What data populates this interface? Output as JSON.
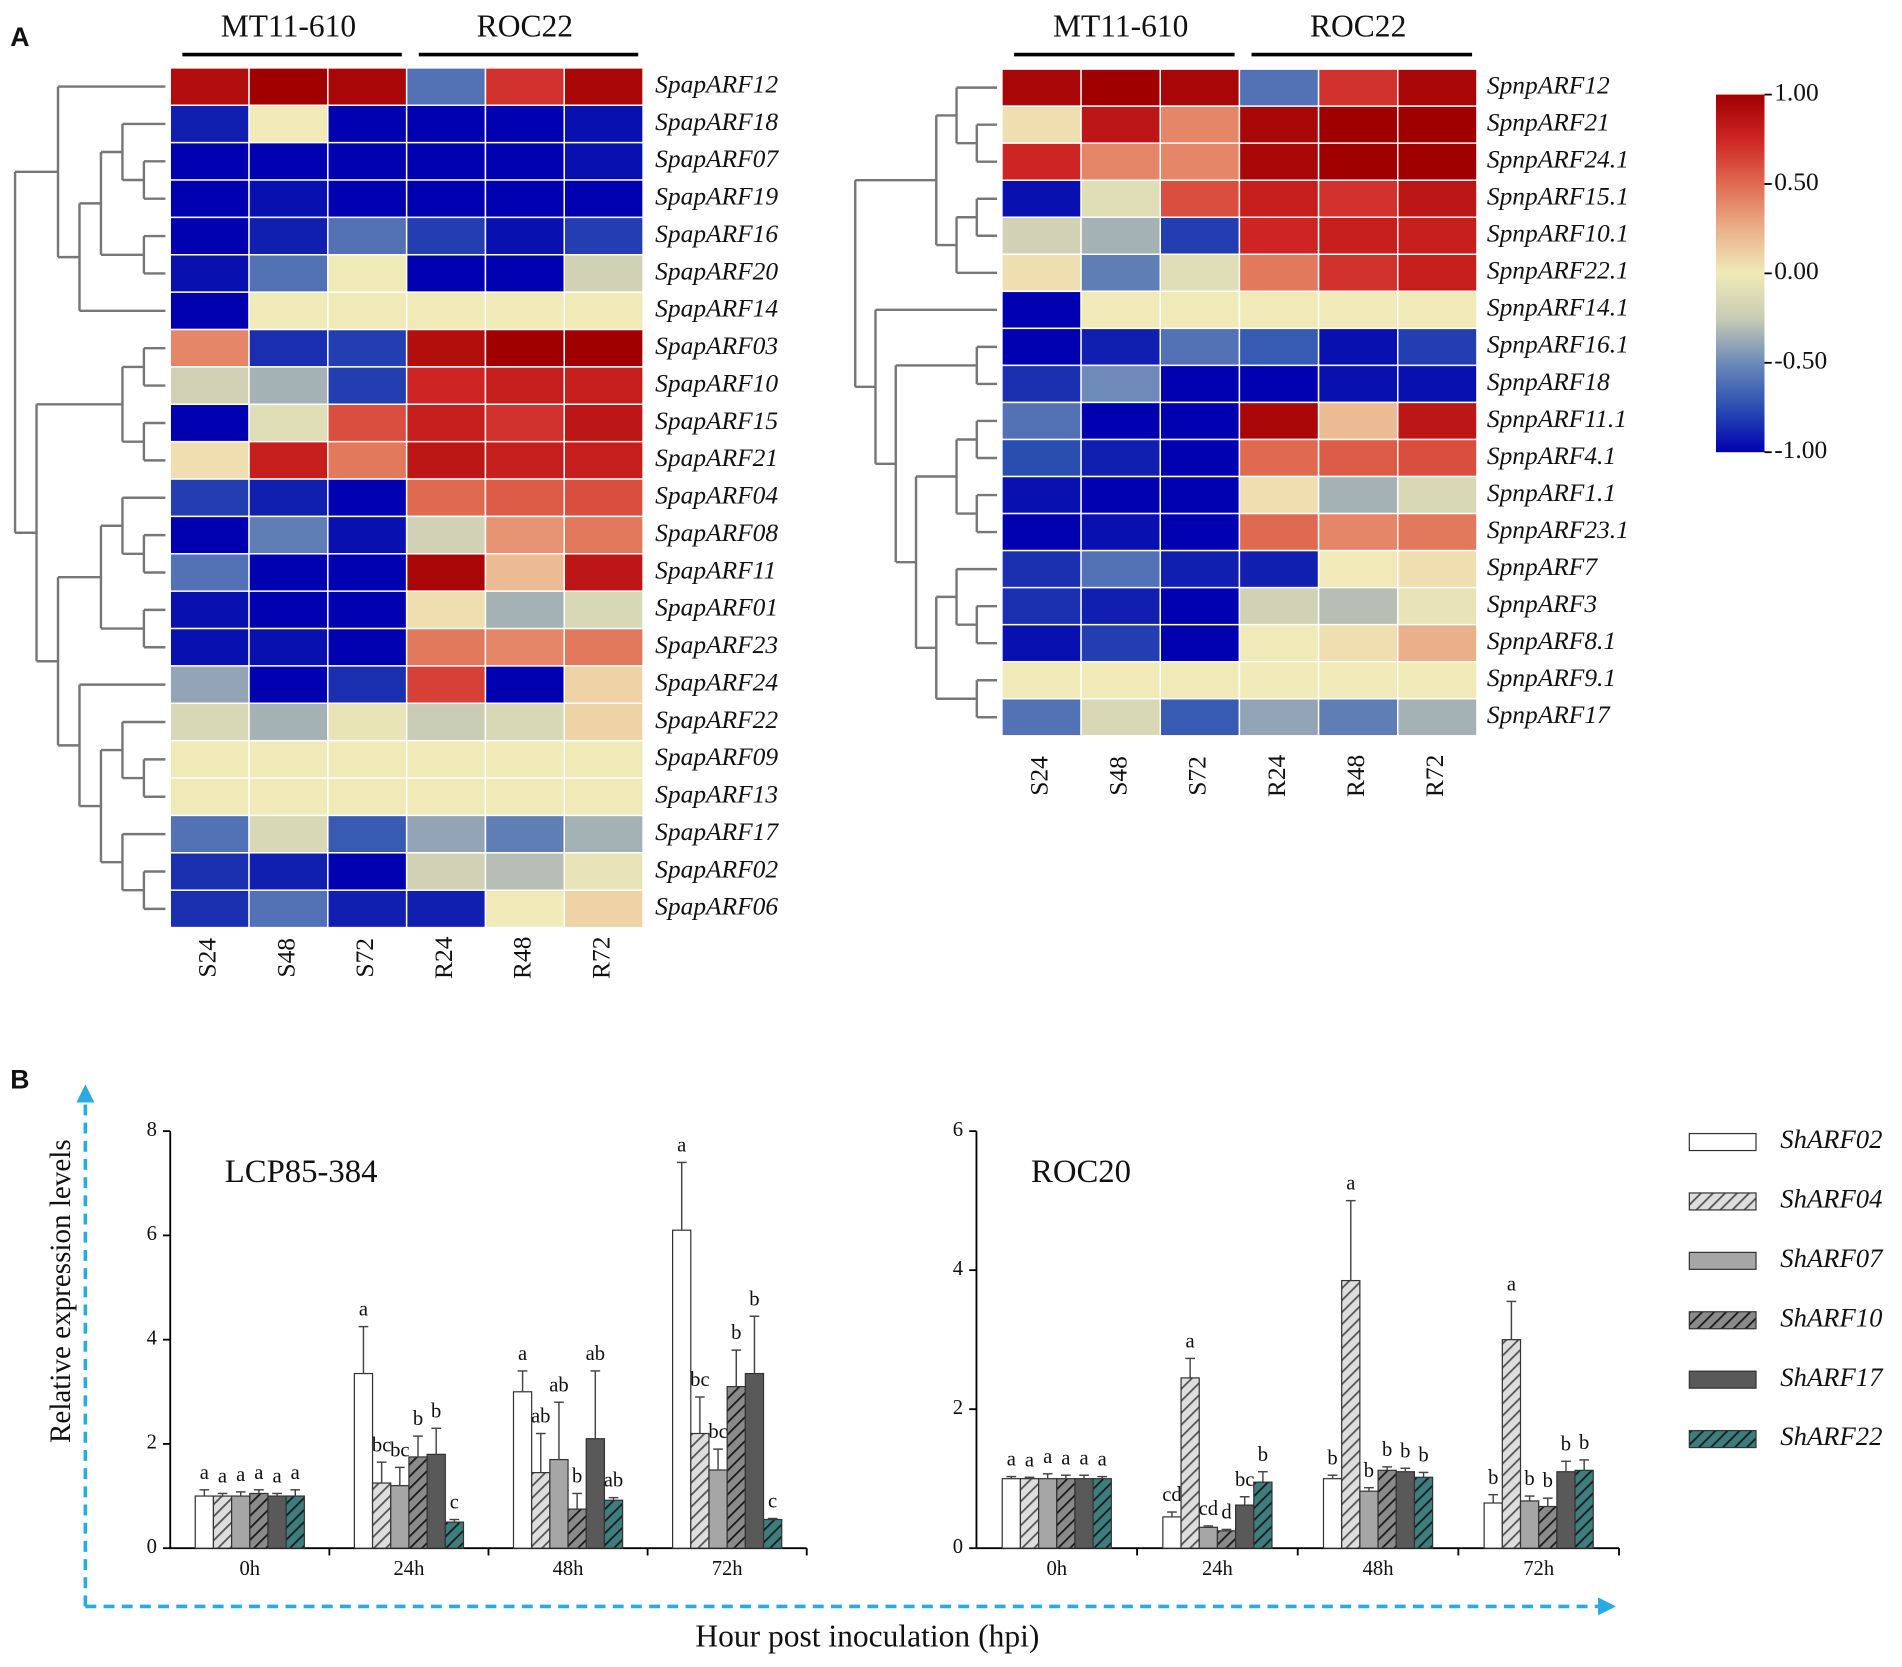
{
  "panel_labels": [
    "A",
    "B"
  ],
  "chart_data": [
    {
      "type": "heatmap",
      "groups": [
        "MT11-610",
        "ROC22"
      ],
      "columns": [
        "S24",
        "S48",
        "S72",
        "R24",
        "R48",
        "R72"
      ],
      "rows": [
        "SpapARF12",
        "SpapARF18",
        "SpapARF07",
        "SpapARF19",
        "SpapARF16",
        "SpapARF20",
        "SpapARF14",
        "SpapARF03",
        "SpapARF10",
        "SpapARF15",
        "SpapARF21",
        "SpapARF04",
        "SpapARF08",
        "SpapARF11",
        "SpapARF01",
        "SpapARF23",
        "SpapARF24",
        "SpapARF22",
        "SpapARF09",
        "SpapARF13",
        "SpapARF17",
        "SpapARF02",
        "SpapARF06"
      ],
      "values": [
        [
          0.9,
          1.0,
          0.95,
          -0.6,
          0.7,
          0.95
        ],
        [
          -0.9,
          0.0,
          -1,
          -1,
          -1,
          -0.95
        ],
        [
          -1,
          -1,
          -1,
          -1,
          -1,
          -0.95
        ],
        [
          -1,
          -0.95,
          -1,
          -1,
          -1,
          -1
        ],
        [
          -1,
          -0.9,
          -0.6,
          -0.8,
          -0.95,
          -0.8
        ],
        [
          -0.95,
          -0.6,
          0,
          -1,
          -1,
          -0.2
        ],
        [
          -1,
          0,
          0,
          0,
          0,
          0
        ],
        [
          0.4,
          -0.85,
          -0.8,
          0.9,
          1.0,
          1.0
        ],
        [
          -0.2,
          -0.35,
          -0.8,
          0.75,
          0.8,
          0.8
        ],
        [
          -1,
          -0.1,
          0.6,
          0.8,
          0.7,
          0.85
        ],
        [
          0.05,
          0.8,
          0.45,
          0.85,
          0.8,
          0.8
        ],
        [
          -0.8,
          -0.9,
          -1,
          0.5,
          0.55,
          0.6
        ],
        [
          -1,
          -0.55,
          -0.95,
          -0.2,
          0.35,
          0.45
        ],
        [
          -0.6,
          -1,
          -1,
          0.95,
          0.2,
          0.85
        ],
        [
          -0.95,
          -1,
          -1,
          0.05,
          -0.35,
          -0.15
        ],
        [
          -0.95,
          -0.95,
          -1,
          0.45,
          0.4,
          0.45
        ],
        [
          -0.4,
          -1,
          -0.85,
          0.65,
          -1,
          0.1
        ],
        [
          -0.15,
          -0.35,
          -0.05,
          -0.25,
          -0.15,
          0.1
        ],
        [
          0,
          0,
          0,
          0,
          0,
          0
        ],
        [
          0,
          0,
          0,
          0,
          0,
          0
        ],
        [
          -0.6,
          -0.15,
          -0.7,
          -0.4,
          -0.55,
          -0.35
        ],
        [
          -0.85,
          -0.9,
          -1,
          -0.2,
          -0.3,
          -0.05
        ],
        [
          -0.85,
          -0.6,
          -0.9,
          -0.9,
          0.0,
          0.1
        ]
      ]
    },
    {
      "type": "heatmap",
      "groups": [
        "MT11-610",
        "ROC22"
      ],
      "columns": [
        "S24",
        "S48",
        "S72",
        "R24",
        "R48",
        "R72"
      ],
      "rows": [
        "SpnpARF12",
        "SpnpARF21",
        "SpnpARF24.1",
        "SpnpARF15.1",
        "SpnpARF10.1",
        "SpnpARF22.1",
        "SpnpARF14.1",
        "SpnpARF16.1",
        "SpnpARF18",
        "SpnpARF11.1",
        "SpnpARF4.1",
        "SpnpARF1.1",
        "SpnpARF23.1",
        "SpnpARF7",
        "SpnpARF3",
        "SpnpARF8.1",
        "SpnpARF9.1",
        "SpnpARF17"
      ],
      "values": [
        [
          0.95,
          1.0,
          0.95,
          -0.6,
          0.7,
          0.95
        ],
        [
          0.05,
          0.85,
          0.4,
          0.95,
          1.0,
          1.0
        ],
        [
          0.75,
          0.4,
          0.4,
          0.95,
          1.0,
          1.0
        ],
        [
          -0.95,
          -0.1,
          0.6,
          0.8,
          0.7,
          0.85
        ],
        [
          -0.2,
          -0.35,
          -0.8,
          0.75,
          0.8,
          0.8
        ],
        [
          0.05,
          -0.55,
          -0.1,
          0.45,
          0.7,
          0.8
        ],
        [
          -1,
          0,
          0,
          0,
          0,
          0
        ],
        [
          -1,
          -0.9,
          -0.6,
          -0.7,
          -0.95,
          -0.8
        ],
        [
          -0.85,
          -0.5,
          -1,
          -1,
          -0.95,
          -0.95
        ],
        [
          -0.6,
          -1,
          -1,
          0.95,
          0.2,
          0.85
        ],
        [
          -0.75,
          -0.9,
          -1,
          0.5,
          0.55,
          0.6
        ],
        [
          -0.95,
          -1,
          -1,
          0.05,
          -0.35,
          -0.15
        ],
        [
          -1,
          -0.95,
          -1,
          0.5,
          0.4,
          0.45
        ],
        [
          -0.85,
          -0.6,
          -0.9,
          -0.9,
          0.0,
          0.05
        ],
        [
          -0.85,
          -0.9,
          -1,
          -0.2,
          -0.3,
          -0.05
        ],
        [
          -0.95,
          -0.8,
          -1,
          0.0,
          0.05,
          0.25
        ],
        [
          0,
          0,
          0,
          0,
          0,
          0
        ],
        [
          -0.6,
          -0.15,
          -0.7,
          -0.4,
          -0.55,
          -0.35
        ]
      ],
      "colorbar": {
        "lim": [
          -1,
          1
        ],
        "ticks": [
          {
            "value": 1,
            "label": "1.00"
          },
          {
            "value": 0.5,
            "label": "0.50"
          },
          {
            "value": 0,
            "label": "0.00"
          },
          {
            "value": -0.5,
            "label": "-0.50"
          },
          {
            "value": -1,
            "label": "-1.00"
          }
        ],
        "colors": [
          "#0000b0",
          "#2a4eb0",
          "#6d8ab8",
          "#c9ccb4",
          "#f0eab8",
          "#eab08a",
          "#e06a50",
          "#cf2424",
          "#a00000"
        ]
      }
    },
    {
      "type": "bar",
      "categories": [
        "0h",
        "24h",
        "48h",
        "72h"
      ],
      "ylabel": "Relative expression levels",
      "xlabel": "Hour post inoculation (hpi)",
      "series": [
        {
          "name": "ShARF02",
          "color": "#ffffff",
          "hatch": false
        },
        {
          "name": "ShARF04",
          "color": "#dedede",
          "hatch": true
        },
        {
          "name": "ShARF07",
          "color": "#a6a6a6",
          "hatch": false
        },
        {
          "name": "ShARF10",
          "color": "#8a8a8a",
          "hatch": true
        },
        {
          "name": "ShARF17",
          "color": "#595959",
          "hatch": false
        },
        {
          "name": "ShARF22",
          "color": "#3d7d7d",
          "hatch": true
        }
      ],
      "panels": [
        {
          "title": "LCP85-384",
          "ylim": [
            0,
            8
          ],
          "yticks": [
            0,
            2,
            4,
            6,
            8
          ],
          "values": [
            [
              1.0,
              3.35,
              3.0,
              6.1
            ],
            [
              1.0,
              1.25,
              1.45,
              2.2
            ],
            [
              1.0,
              1.2,
              1.7,
              1.5
            ],
            [
              1.05,
              1.75,
              0.75,
              3.1
            ],
            [
              1.0,
              1.8,
              2.1,
              3.35
            ],
            [
              1.0,
              0.5,
              0.92,
              0.55
            ]
          ],
          "errors": [
            [
              0.12,
              0.9,
              0.4,
              1.3
            ],
            [
              0.05,
              0.4,
              0.75,
              0.7
            ],
            [
              0.08,
              0.35,
              1.1,
              0.4
            ],
            [
              0.07,
              0.4,
              0.3,
              0.7
            ],
            [
              0.05,
              0.5,
              1.3,
              1.1
            ],
            [
              0.12,
              0.05,
              0.05,
              0.02
            ]
          ],
          "letters": [
            [
              "a",
              "a",
              "a",
              "a"
            ],
            [
              "a",
              "bc",
              "ab",
              "bc"
            ],
            [
              "a",
              "bc",
              "ab",
              "bc"
            ],
            [
              "a",
              "b",
              "b",
              "b"
            ],
            [
              "a",
              "b",
              "ab",
              "b"
            ],
            [
              "a",
              "c",
              "ab",
              "c"
            ]
          ]
        },
        {
          "title": "ROC20",
          "ylim": [
            0,
            6
          ],
          "yticks": [
            0,
            2,
            4,
            6
          ],
          "values": [
            [
              1.0,
              0.45,
              1.0,
              0.65
            ],
            [
              1.0,
              2.45,
              3.85,
              3.0
            ],
            [
              1.0,
              0.3,
              0.82,
              0.68
            ],
            [
              1.0,
              0.25,
              1.12,
              0.6
            ],
            [
              1.0,
              0.62,
              1.1,
              1.1
            ],
            [
              1.0,
              0.95,
              1.02,
              1.12
            ]
          ],
          "errors": [
            [
              0.03,
              0.07,
              0.05,
              0.12
            ],
            [
              0.02,
              0.28,
              1.15,
              0.55
            ],
            [
              0.07,
              0.02,
              0.05,
              0.07
            ],
            [
              0.05,
              0.02,
              0.05,
              0.12
            ],
            [
              0.05,
              0.12,
              0.05,
              0.15
            ],
            [
              0.03,
              0.15,
              0.07,
              0.15
            ]
          ],
          "letters": [
            [
              "a",
              "cd",
              "b",
              "b"
            ],
            [
              "a",
              "a",
              "a",
              "a"
            ],
            [
              "a",
              "cd",
              "b",
              "b"
            ],
            [
              "a",
              "d",
              "b",
              "b"
            ],
            [
              "a",
              "bc",
              "b",
              "b"
            ],
            [
              "a",
              "b",
              "b",
              "b"
            ]
          ]
        }
      ]
    }
  ]
}
